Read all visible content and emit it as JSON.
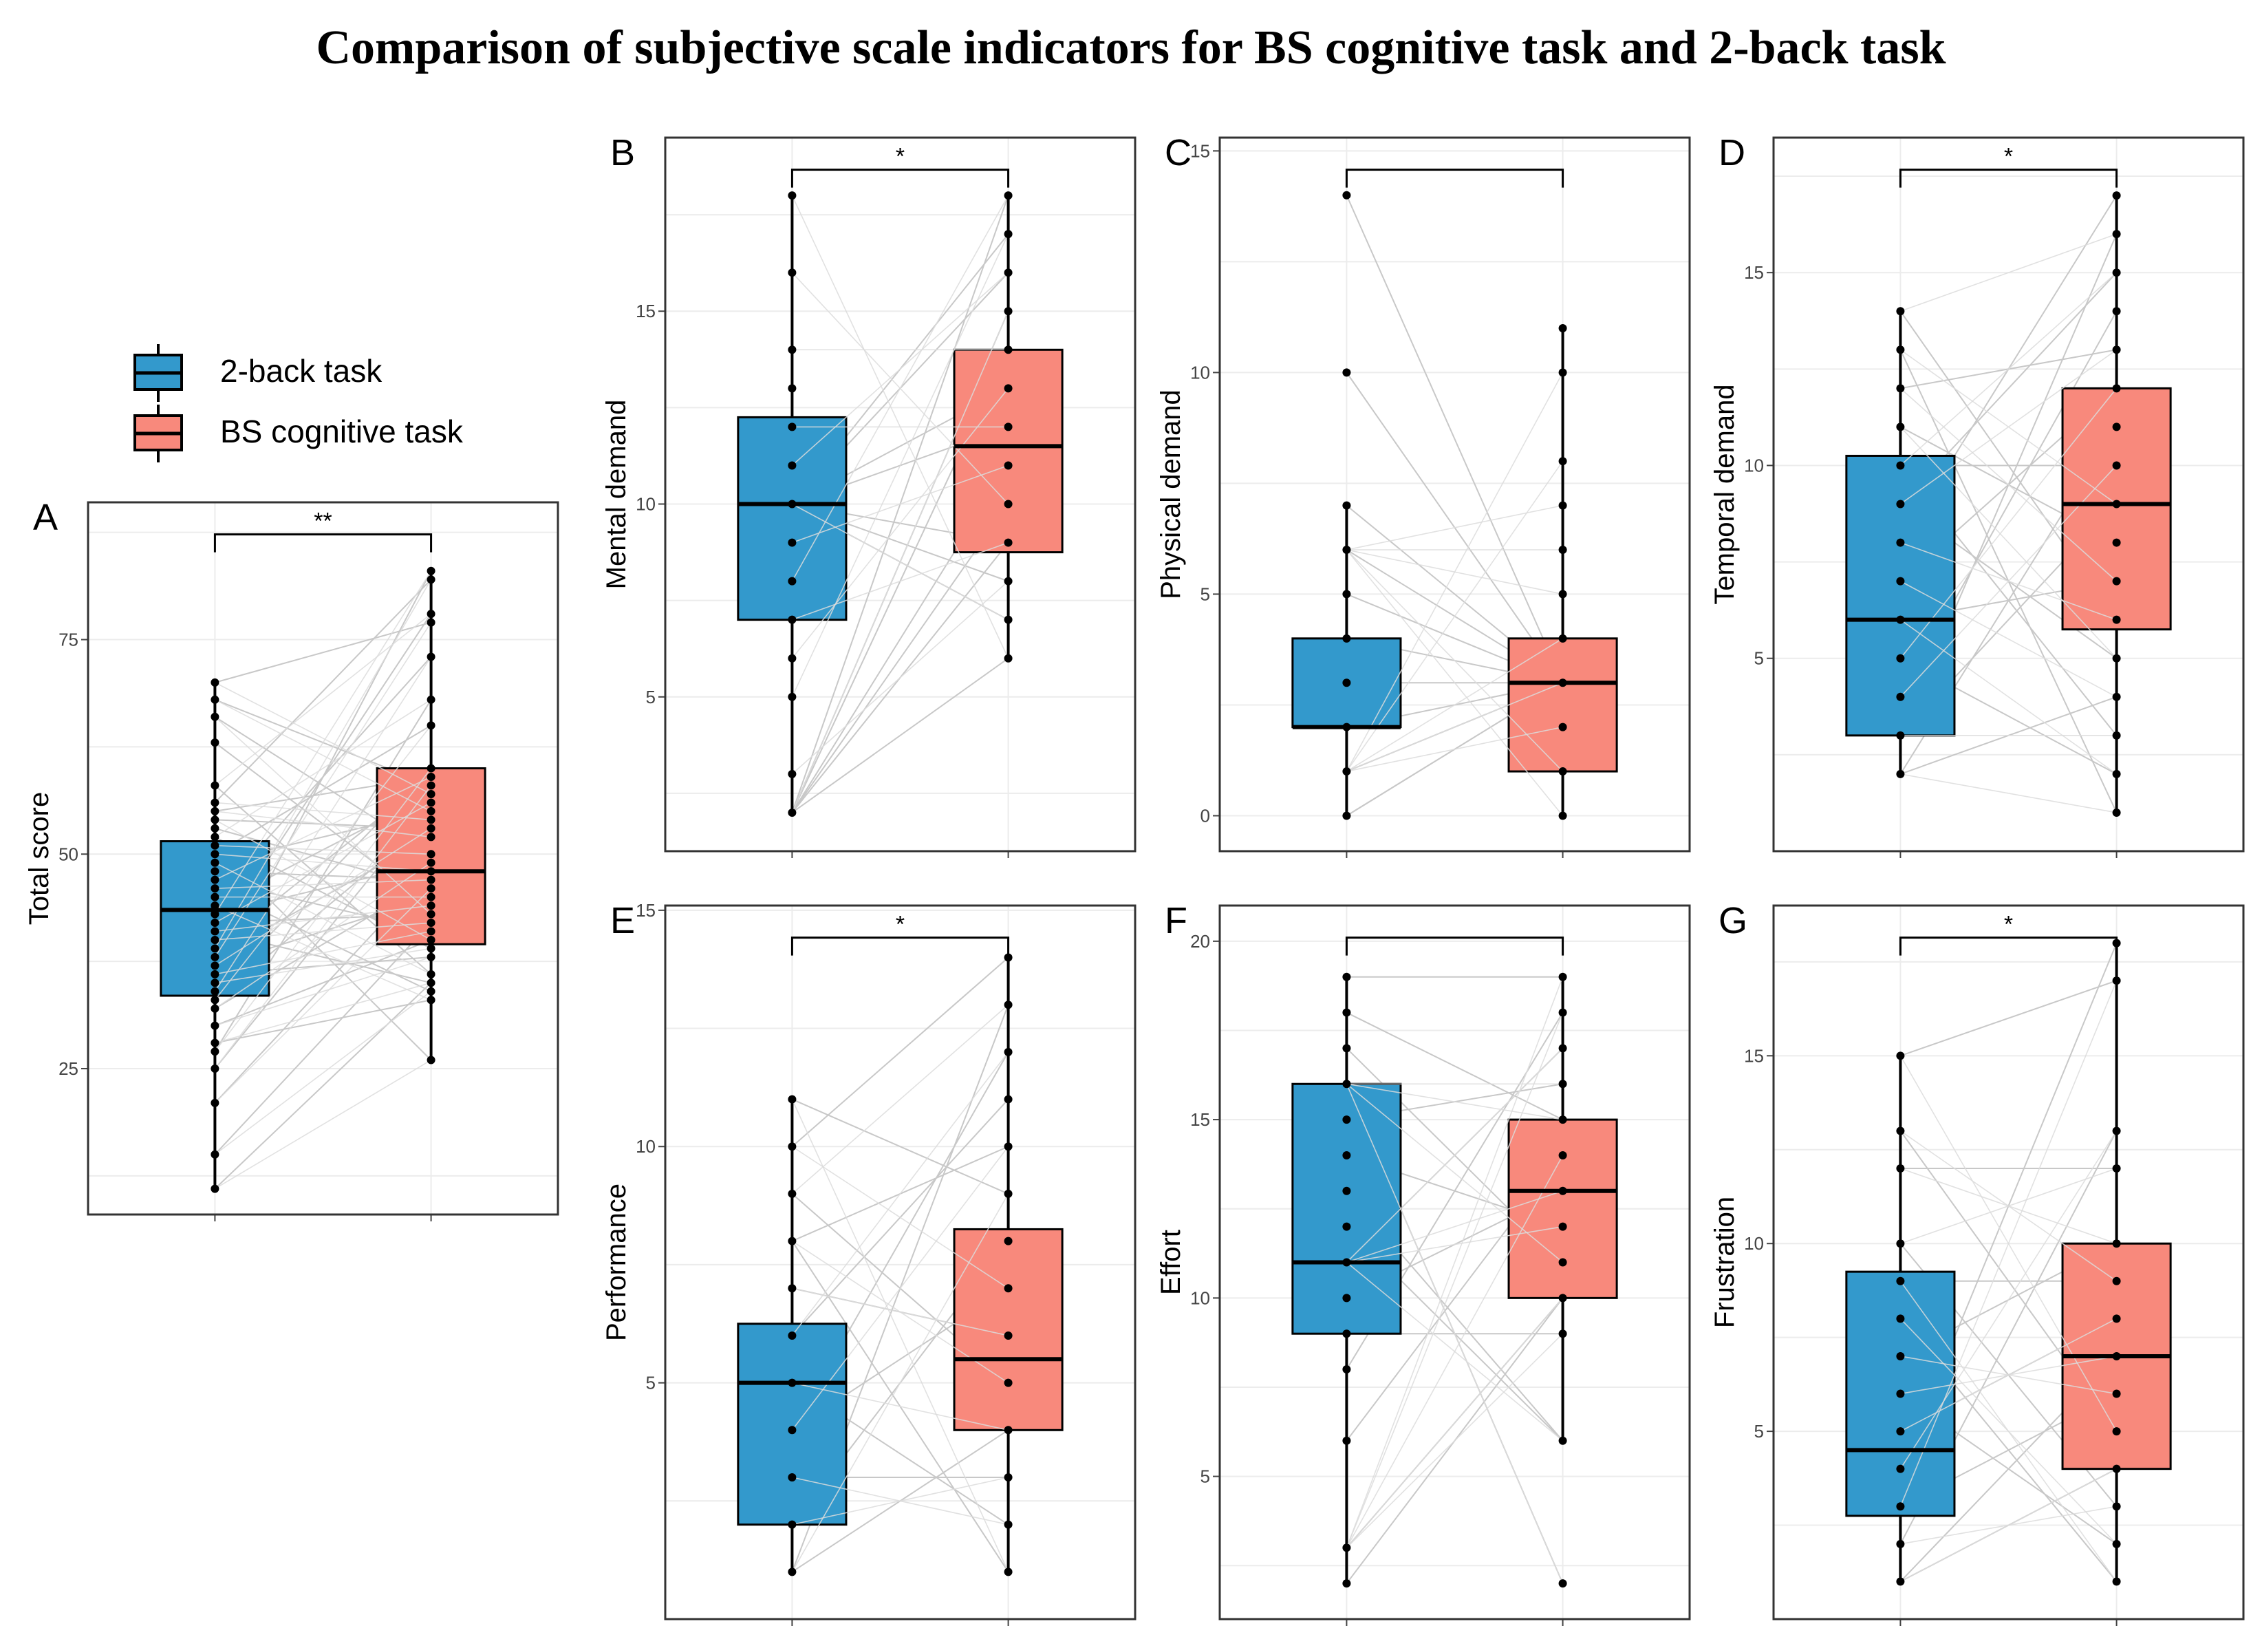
{
  "figure_title": "Comparison of subjective scale indicators for BS cognitive task and 2-back task",
  "colors": {
    "two_back": "#3399cc",
    "bs": "#f8897c",
    "line": "#c8c8c8"
  },
  "legend": [
    {
      "label": "2-back task",
      "color": "#3399cc"
    },
    {
      "label": "BS cognitive task",
      "color": "#f8897c"
    }
  ],
  "chart_data": [
    {
      "panel": "A",
      "type": "box",
      "ylabel": "Total score",
      "ylim": [
        8,
        91
      ],
      "yticks": [
        25,
        50,
        75
      ],
      "significance": "**",
      "series": [
        {
          "name": "2-back task",
          "q1": 33.5,
          "median": 43.5,
          "q3": 51.5,
          "whisker_low": 11,
          "whisker_high": 70,
          "points": [
            70,
            68,
            66,
            63,
            58,
            56,
            55,
            54,
            53,
            52,
            51,
            50,
            49,
            48,
            47,
            46,
            45,
            44,
            43,
            42,
            41,
            40,
            39,
            38,
            37,
            36,
            35,
            34,
            33,
            32,
            30,
            28,
            27,
            25,
            21,
            15,
            11
          ]
        },
        {
          "name": "BS cognitive task",
          "q1": 39.5,
          "median": 48,
          "q3": 60,
          "whisker_low": 26,
          "whisker_high": 83,
          "points": [
            83,
            82,
            78,
            77,
            73,
            68,
            65,
            60,
            59,
            58,
            57,
            56,
            55,
            54,
            53,
            52,
            50,
            49,
            48,
            47,
            46,
            45,
            44,
            43,
            42,
            41,
            40,
            39,
            38,
            36,
            35,
            34,
            33,
            26
          ]
        }
      ]
    },
    {
      "panel": "B",
      "type": "box",
      "ylabel": "Mental demand",
      "ylim": [
        1,
        19.5
      ],
      "yticks": [
        5,
        10,
        15
      ],
      "significance": "*",
      "series": [
        {
          "name": "2-back task",
          "q1": 7,
          "median": 10,
          "q3": 12.25,
          "whisker_low": 2,
          "whisker_high": 18,
          "points": [
            18,
            16,
            14,
            13,
            12,
            11,
            10,
            9,
            8,
            7,
            6,
            5,
            3,
            2
          ]
        },
        {
          "name": "BS cognitive task",
          "q1": 8.75,
          "median": 11.5,
          "q3": 14,
          "whisker_low": 6,
          "whisker_high": 18,
          "points": [
            18,
            17,
            16,
            15,
            14,
            13,
            12,
            11,
            10,
            9,
            8,
            7,
            6
          ]
        }
      ]
    },
    {
      "panel": "C",
      "type": "box",
      "ylabel": "Physical demand",
      "ylim": [
        -0.8,
        15.3
      ],
      "yticks": [
        0,
        5,
        10,
        15
      ],
      "significance": "",
      "series": [
        {
          "name": "2-back task",
          "q1": 2,
          "median": 2,
          "q3": 4,
          "whisker_low": 0,
          "whisker_high": 7,
          "points": [
            14,
            10,
            7,
            6,
            5,
            4,
            3,
            2,
            1,
            0
          ]
        },
        {
          "name": "BS cognitive task",
          "q1": 1,
          "median": 3,
          "q3": 4,
          "whisker_low": 0,
          "whisker_high": 11,
          "points": [
            11,
            10,
            8,
            7,
            6,
            5,
            4,
            3,
            2,
            1,
            0
          ]
        }
      ]
    },
    {
      "panel": "D",
      "type": "box",
      "ylabel": "Temporal demand",
      "ylim": [
        0,
        18.5
      ],
      "yticks": [
        5,
        10,
        15
      ],
      "significance": "*",
      "series": [
        {
          "name": "2-back task",
          "q1": 3,
          "median": 6,
          "q3": 10.25,
          "whisker_low": 2,
          "whisker_high": 14,
          "points": [
            14,
            13,
            12,
            11,
            10,
            9,
            8,
            7,
            6,
            5,
            4,
            3,
            2
          ]
        },
        {
          "name": "BS cognitive task",
          "q1": 5.75,
          "median": 9,
          "q3": 12,
          "whisker_low": 1,
          "whisker_high": 17,
          "points": [
            17,
            16,
            15,
            14,
            13,
            12,
            11,
            10,
            9,
            8,
            7,
            6,
            5,
            4,
            3,
            2,
            1
          ]
        }
      ]
    },
    {
      "panel": "E",
      "type": "box",
      "ylabel": "Performance",
      "ylim": [
        0,
        15.1
      ],
      "yticks": [
        5,
        10,
        15
      ],
      "significance": "*",
      "series": [
        {
          "name": "2-back task",
          "q1": 2,
          "median": 5,
          "q3": 6.25,
          "whisker_low": 1,
          "whisker_high": 11,
          "points": [
            11,
            10,
            9,
            8,
            7,
            6,
            5,
            4,
            3,
            2,
            1
          ]
        },
        {
          "name": "BS cognitive task",
          "q1": 4,
          "median": 5.5,
          "q3": 8.25,
          "whisker_low": 1,
          "whisker_high": 14,
          "points": [
            14,
            13,
            12,
            11,
            10,
            9,
            8,
            7,
            6,
            5,
            4,
            3,
            2,
            1
          ]
        }
      ]
    },
    {
      "panel": "F",
      "type": "box",
      "ylabel": "Effort",
      "ylim": [
        1,
        21
      ],
      "yticks": [
        5,
        10,
        15,
        20
      ],
      "significance": "",
      "series": [
        {
          "name": "2-back task",
          "q1": 9,
          "median": 11,
          "q3": 16,
          "whisker_low": 2,
          "whisker_high": 19,
          "points": [
            19,
            18,
            17,
            16,
            15,
            14,
            13,
            12,
            11,
            10,
            9,
            8,
            6,
            3,
            2
          ]
        },
        {
          "name": "BS cognitive task",
          "q1": 10,
          "median": 13,
          "q3": 15,
          "whisker_low": 6,
          "whisker_high": 19,
          "points": [
            19,
            18,
            17,
            16,
            15,
            14,
            13,
            12,
            11,
            10,
            9,
            6,
            2
          ]
        }
      ]
    },
    {
      "panel": "G",
      "type": "box",
      "ylabel": "Frustration",
      "ylim": [
        0,
        19
      ],
      "yticks": [
        5,
        10,
        15
      ],
      "significance": "*",
      "series": [
        {
          "name": "2-back task",
          "q1": 2.75,
          "median": 4.5,
          "q3": 9.25,
          "whisker_low": 1,
          "whisker_high": 15,
          "points": [
            15,
            13,
            12,
            10,
            9,
            8,
            7,
            6,
            5,
            4,
            3,
            2,
            1
          ]
        },
        {
          "name": "BS cognitive task",
          "q1": 4,
          "median": 7,
          "q3": 10,
          "whisker_low": 1,
          "whisker_high": 18,
          "points": [
            18,
            17,
            13,
            12,
            10,
            9,
            8,
            7,
            6,
            5,
            4,
            3,
            2,
            1
          ]
        }
      ]
    }
  ]
}
